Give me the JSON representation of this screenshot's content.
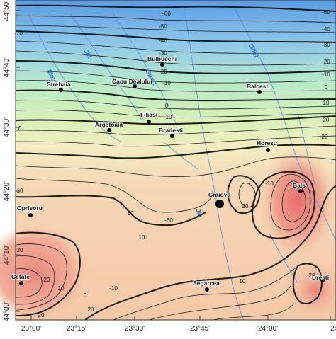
{
  "map": {
    "lat_ticks": [
      "44°50'",
      "44°40'",
      "44°30'",
      "44°20'",
      "44°10'",
      "44°00'"
    ],
    "lon_ticks": [
      "23°00'",
      "23°15'",
      "23°30'",
      "23°45'",
      "24°00'",
      "24°"
    ],
    "contour_labels": [
      "-60",
      "-70",
      "-50",
      "-40",
      "-30",
      "-20",
      "-10",
      "0",
      "10",
      "20",
      "-60",
      "-50",
      "-40",
      "-30",
      "-20",
      "-10",
      "0",
      "10",
      "20",
      "20",
      "10",
      "20",
      "-10",
      "0",
      "20",
      "0",
      "10",
      "20",
      "10",
      "20",
      "20",
      "10",
      "20",
      "-10",
      "10"
    ],
    "cities": [
      {
        "name": "Bulbuceni"
      },
      {
        "name": "Strehaia"
      },
      {
        "name": "Capu Dealului"
      },
      {
        "name": "Balcesti"
      },
      {
        "name": "Filiasi"
      },
      {
        "name": "Argetoaia"
      },
      {
        "name": "Bradesti"
      },
      {
        "name": "Horezu"
      },
      {
        "name": "Craiova"
      },
      {
        "name": "Bals"
      },
      {
        "name": "Oprisoru"
      },
      {
        "name": "Cetate"
      },
      {
        "name": "Segarcea"
      },
      {
        "name": "Dresti"
      }
    ],
    "rivers": [
      {
        "name": "Motru"
      },
      {
        "name": "Jiit"
      },
      {
        "name": "Gilort"
      },
      {
        "name": "Oltet"
      },
      {
        "name": "Jiu"
      }
    ],
    "colors": {
      "cold": "#4f8fd8",
      "mid": "#b9e8c4",
      "neutral": "#f3f2c8",
      "warm": "#f0b08f",
      "hot": "#e87f78",
      "river": "#5f86d8",
      "contour": "#1a1a1a"
    }
  }
}
